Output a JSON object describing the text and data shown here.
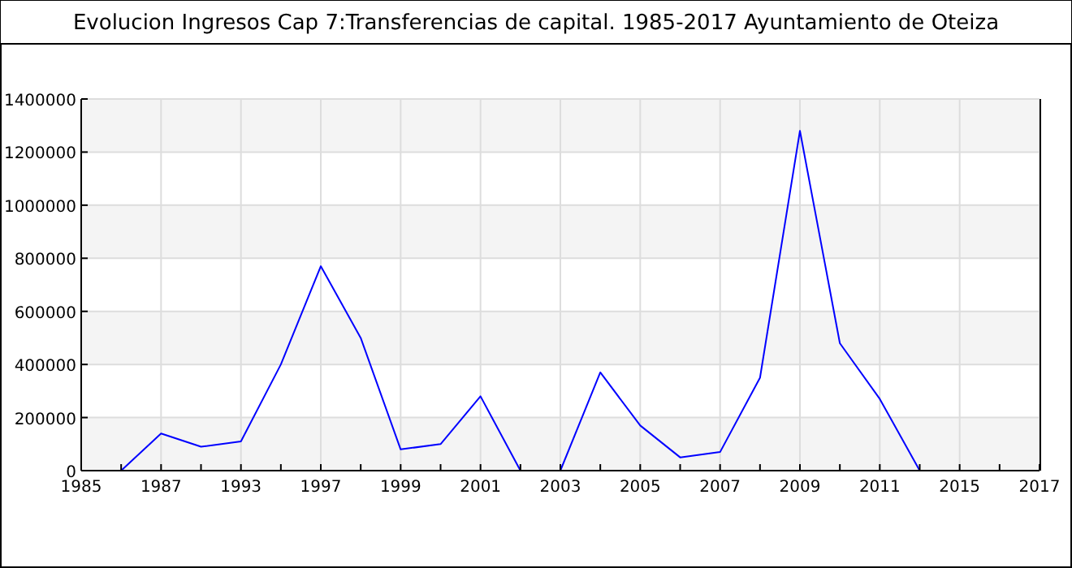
{
  "chart_data": {
    "type": "line",
    "title": "Evolucion Ingresos Cap 7:Transferencias de capital. 1985-2017 Ayuntamiento de Oteiza",
    "categories": [
      "1985",
      null,
      "1987",
      null,
      "1993",
      null,
      "1997",
      null,
      "1999",
      null,
      "2001",
      null,
      "2003",
      null,
      "2005",
      null,
      "2007",
      null,
      "2009",
      null,
      "2011",
      null,
      "2015",
      null,
      "2017"
    ],
    "series": [
      {
        "color": "#0000ff",
        "values": [
          null,
          0,
          140000,
          90000,
          110000,
          400000,
          770000,
          500000,
          80000,
          100000,
          280000,
          0,
          0,
          370000,
          170000,
          50000,
          70000,
          350000,
          1280000,
          480000,
          270000,
          0,
          null,
          null,
          null
        ]
      }
    ],
    "ylim": [
      0,
      1400000
    ],
    "yticks": [
      0,
      200000,
      400000,
      600000,
      800000,
      1000000,
      1200000,
      1400000
    ],
    "grid": true,
    "marker": "none"
  }
}
